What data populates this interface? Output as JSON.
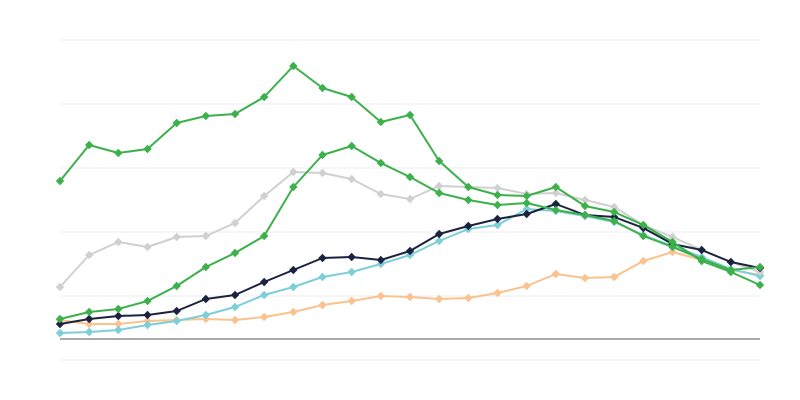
{
  "chart_data": {
    "type": "line",
    "categories": [
      null,
      null,
      null,
      null,
      null,
      null,
      null,
      null,
      null,
      null,
      null,
      null,
      null,
      null,
      null,
      null,
      null,
      null,
      null,
      null,
      null,
      null,
      null,
      null,
      null
    ],
    "ylim": [
      0,
      320
    ],
    "yticks": [
      0,
      64,
      128,
      192,
      256,
      320
    ],
    "grid": true,
    "series": [
      {
        "color": "#fcc28e",
        "values": [
          40,
          36,
          36,
          39,
          40,
          41,
          40,
          43,
          48,
          55,
          59,
          64,
          63,
          61,
          62,
          67,
          74,
          86,
          82,
          83,
          99,
          108,
          100,
          90,
          85
        ]
      },
      {
        "color": "#7ccfd8",
        "values": [
          27,
          28,
          30,
          35,
          39,
          45,
          53,
          65,
          73,
          83,
          88,
          96,
          105,
          119,
          131,
          135,
          151,
          149,
          144,
          138,
          125,
          114,
          103,
          91,
          84
        ]
      },
      {
        "color": "#d0d0d0",
        "values": [
          73,
          105,
          118,
          113,
          123,
          124,
          137,
          164,
          188,
          187,
          181,
          166,
          161,
          174,
          173,
          172,
          166,
          167,
          160,
          153,
          135,
          123,
          110,
          98,
          88
        ]
      },
      {
        "color": "#1b2340",
        "values": [
          36,
          41,
          44,
          45,
          49,
          61,
          65,
          78,
          90,
          102,
          103,
          100,
          109,
          126,
          134,
          141,
          146,
          156,
          145,
          143,
          132,
          116,
          110,
          98,
          92
        ]
      },
      {
        "color": "#3cb04b",
        "values": [
          41,
          48,
          51,
          59,
          74,
          93,
          107,
          124,
          173,
          205,
          214,
          197,
          183,
          167,
          160,
          155,
          157,
          150,
          145,
          139,
          124,
          113,
          101,
          90,
          93
        ]
      },
      {
        "color": "#3cb04b",
        "values": [
          179,
          215,
          207,
          211,
          237,
          244,
          246,
          263,
          294,
          272,
          263,
          238,
          245,
          199,
          173,
          165,
          164,
          173,
          154,
          148,
          135,
          118,
          99,
          88,
          75
        ]
      }
    ]
  }
}
